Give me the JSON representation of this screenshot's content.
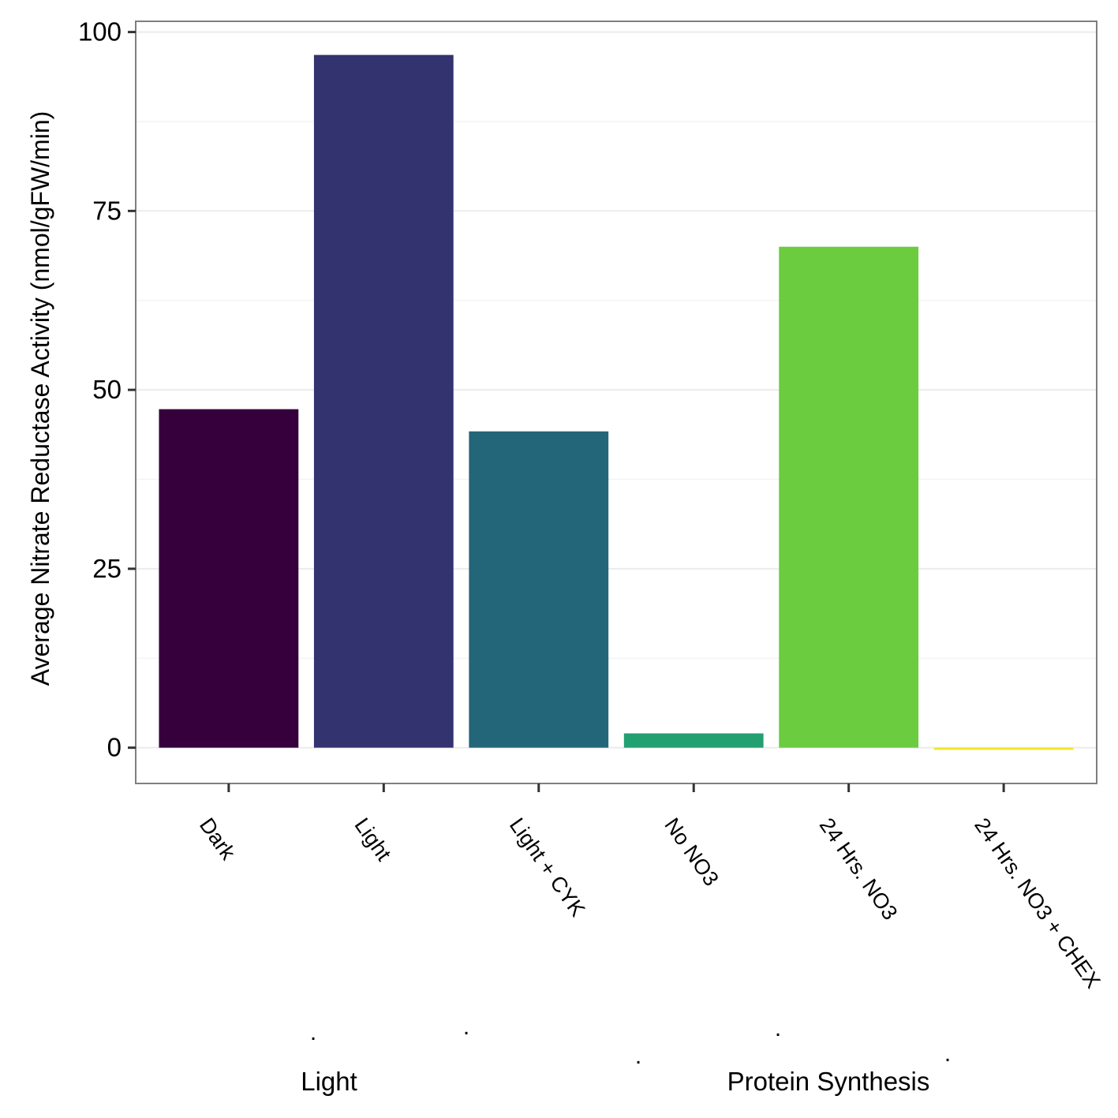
{
  "chart_data": {
    "type": "bar",
    "categories": [
      "Dark",
      "Light",
      "Light + CYK",
      "No NO3",
      "24 Hrs. NO3",
      "24 Hrs. NO3 + CHEX"
    ],
    "values": [
      47.3,
      96.8,
      44.2,
      2.0,
      70.0,
      -0.3
    ],
    "colors": [
      "#35003c",
      "#333370",
      "#236579",
      "#22a071",
      "#6bcc3f",
      "#f1e626"
    ],
    "ylabel": "Average Nitrate Reductase Activity (nmol/gFW/min)",
    "ylim": [
      -5,
      101.5
    ],
    "yticks": [
      0,
      25,
      50,
      75,
      100
    ],
    "grid": true,
    "legend": "none",
    "group_labels": [
      "Light",
      "Protein Synthesis"
    ],
    "dot_marks": [
      ".",
      ".",
      ".",
      ".",
      "."
    ]
  }
}
